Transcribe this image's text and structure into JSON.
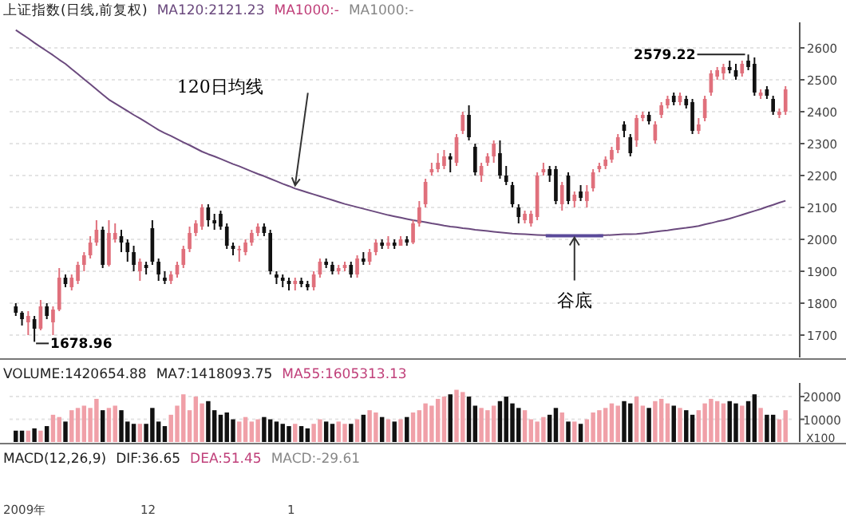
{
  "chart_data": [
    {
      "type": "candlestick",
      "title": "上证指数(日线,前复权)",
      "tick_labels": "y",
      "categories": [
        null,
        null,
        null,
        null,
        null,
        null,
        null,
        null,
        null,
        null,
        null,
        null,
        null,
        null,
        null,
        null,
        null,
        null,
        null,
        null,
        null,
        null,
        null,
        null,
        null,
        null,
        null,
        null,
        null,
        null,
        null,
        null,
        null,
        null,
        null,
        null,
        null,
        null,
        null,
        null,
        null,
        null,
        null,
        null,
        null,
        null,
        null,
        null,
        null,
        null,
        null,
        null,
        null,
        null,
        null,
        null,
        null,
        null,
        null,
        null,
        null,
        null,
        null,
        null,
        null,
        null,
        null,
        null,
        null,
        null,
        null,
        null,
        null,
        null,
        null,
        null,
        null,
        null,
        null,
        null,
        null,
        null,
        null,
        null,
        null,
        null,
        null,
        null,
        null,
        null,
        null,
        null,
        null,
        null,
        null,
        null,
        null,
        null,
        null,
        null,
        null,
        null,
        null,
        null,
        null,
        null,
        null,
        null,
        null,
        null,
        null,
        null,
        null,
        null,
        null,
        null,
        null,
        null,
        null,
        null,
        null,
        null,
        null,
        null,
        null
      ],
      "ylim": [
        1630,
        2680
      ],
      "yticks": [
        1700,
        1800,
        1900,
        2000,
        2100,
        2200,
        2300,
        2400,
        2500,
        2600
      ],
      "grid": "y",
      "ohlc": [
        [
          1790,
          1800,
          1760,
          1770
        ],
        [
          1770,
          1775,
          1730,
          1750
        ],
        [
          1740,
          1775,
          1700,
          1760
        ],
        [
          1750,
          1760,
          1678.96,
          1720
        ],
        [
          1720,
          1810,
          1715,
          1790
        ],
        [
          1790,
          1800,
          1750,
          1760
        ],
        [
          1740,
          1790,
          1700,
          1780
        ],
        [
          1780,
          1910,
          1775,
          1880
        ],
        [
          1880,
          1890,
          1850,
          1860
        ],
        [
          1850,
          1890,
          1840,
          1880
        ],
        [
          1870,
          1930,
          1860,
          1920
        ],
        [
          1920,
          1960,
          1900,
          1950
        ],
        [
          1950,
          2010,
          1940,
          1990
        ],
        [
          1990,
          2060,
          1980,
          2030
        ],
        [
          2030,
          2040,
          1910,
          1920
        ],
        [
          1920,
          2060,
          1915,
          2020
        ],
        [
          2000,
          2050,
          1990,
          2020
        ],
        [
          2010,
          2030,
          1960,
          1990
        ],
        [
          1990,
          2000,
          1930,
          1960
        ],
        [
          1960,
          1980,
          1900,
          1920
        ],
        [
          1900,
          1940,
          1870,
          1930
        ],
        [
          1920,
          1930,
          1890,
          1910
        ],
        [
          2035,
          2060,
          1920,
          1930
        ],
        [
          1930,
          1940,
          1870,
          1890
        ],
        [
          1880,
          1900,
          1860,
          1870
        ],
        [
          1870,
          1900,
          1860,
          1890
        ],
        [
          1890,
          1930,
          1880,
          1920
        ],
        [
          1920,
          1980,
          1910,
          1970
        ],
        [
          1970,
          2040,
          1960,
          2020
        ],
        [
          2020,
          2060,
          2010,
          2050
        ],
        [
          2040,
          2110,
          2030,
          2100
        ],
        [
          2100,
          2110,
          2040,
          2060
        ],
        [
          2060,
          2080,
          2030,
          2050
        ],
        [
          2080,
          2090,
          2030,
          2040
        ],
        [
          2040,
          2050,
          1970,
          1980
        ],
        [
          1980,
          1990,
          1950,
          1970
        ],
        [
          1970,
          1980,
          1930,
          1970
        ],
        [
          1960,
          2000,
          1950,
          1990
        ],
        [
          1990,
          2030,
          1980,
          2020
        ],
        [
          2020,
          2050,
          2010,
          2040
        ],
        [
          2040,
          2050,
          2010,
          2020
        ],
        [
          2020,
          2030,
          1890,
          1900
        ],
        [
          1890,
          1900,
          1860,
          1880
        ],
        [
          1880,
          1890,
          1850,
          1870
        ],
        [
          1870,
          1880,
          1840,
          1860
        ],
        [
          1860,
          1880,
          1840,
          1870
        ],
        [
          1870,
          1880,
          1850,
          1860
        ],
        [
          1860,
          1870,
          1840,
          1850
        ],
        [
          1850,
          1900,
          1840,
          1890
        ],
        [
          1890,
          1940,
          1880,
          1930
        ],
        [
          1930,
          1940,
          1910,
          1920
        ],
        [
          1920,
          1930,
          1890,
          1900
        ],
        [
          1900,
          1920,
          1890,
          1910
        ],
        [
          1910,
          1930,
          1900,
          1920
        ],
        [
          1920,
          1930,
          1880,
          1890
        ],
        [
          1890,
          1950,
          1880,
          1940
        ],
        [
          1940,
          1960,
          1920,
          1930
        ],
        [
          1930,
          1970,
          1920,
          1960
        ],
        [
          1960,
          2000,
          1950,
          1990
        ],
        [
          1990,
          2000,
          1970,
          1980
        ],
        [
          1980,
          2010,
          1970,
          1990
        ],
        [
          1990,
          2000,
          1970,
          1980
        ],
        [
          1980,
          2010,
          1980,
          2000
        ],
        [
          2000,
          2010,
          1980,
          1990
        ],
        [
          1990,
          2060,
          1985,
          2050
        ],
        [
          2050,
          2120,
          2040,
          2100
        ],
        [
          2110,
          2190,
          2100,
          2180
        ],
        [
          2210,
          2240,
          2200,
          2220
        ],
        [
          2220,
          2270,
          2210,
          2240
        ],
        [
          2230,
          2280,
          2220,
          2260
        ],
        [
          2260,
          2270,
          2210,
          2250
        ],
        [
          2240,
          2330,
          2230,
          2320
        ],
        [
          2340,
          2400,
          2330,
          2390
        ],
        [
          2390,
          2420,
          2310,
          2320
        ],
        [
          2290,
          2300,
          2200,
          2210
        ],
        [
          2200,
          2240,
          2180,
          2230
        ],
        [
          2240,
          2270,
          2230,
          2260
        ],
        [
          2260,
          2310,
          2240,
          2300
        ],
        [
          2270,
          2310,
          2190,
          2200
        ],
        [
          2200,
          2230,
          2170,
          2180
        ],
        [
          2170,
          2180,
          2100,
          2110
        ],
        [
          2100,
          2110,
          2050,
          2070
        ],
        [
          2060,
          2090,
          2050,
          2080
        ],
        [
          2050,
          2090,
          2040,
          2080
        ],
        [
          2070,
          2210,
          2060,
          2200
        ],
        [
          2210,
          2240,
          2200,
          2220
        ],
        [
          2220,
          2230,
          2180,
          2200
        ],
        [
          2220,
          2230,
          2110,
          2120
        ],
        [
          2110,
          2180,
          2090,
          2170
        ],
        [
          2200,
          2210,
          2110,
          2120
        ],
        [
          2120,
          2150,
          2100,
          2140
        ],
        [
          2150,
          2170,
          2120,
          2130
        ],
        [
          2120,
          2170,
          2100,
          2150
        ],
        [
          2160,
          2220,
          2150,
          2210
        ],
        [
          2220,
          2240,
          2210,
          2230
        ],
        [
          2230,
          2260,
          2220,
          2250
        ],
        [
          2250,
          2290,
          2240,
          2280
        ],
        [
          2280,
          2330,
          2270,
          2320
        ],
        [
          2360,
          2370,
          2320,
          2340
        ],
        [
          2320,
          2330,
          2260,
          2270
        ],
        [
          2310,
          2390,
          2290,
          2380
        ],
        [
          2380,
          2400,
          2370,
          2390
        ],
        [
          2390,
          2400,
          2360,
          2370
        ],
        [
          2310,
          2370,
          2300,
          2360
        ],
        [
          2390,
          2430,
          2380,
          2420
        ],
        [
          2420,
          2450,
          2410,
          2440
        ],
        [
          2450,
          2460,
          2420,
          2430
        ],
        [
          2430,
          2460,
          2420,
          2450
        ],
        [
          2440,
          2450,
          2410,
          2420
        ],
        [
          2430,
          2440,
          2330,
          2340
        ],
        [
          2340,
          2380,
          2330,
          2360
        ],
        [
          2380,
          2450,
          2370,
          2440
        ],
        [
          2460,
          2530,
          2450,
          2520
        ],
        [
          2510,
          2540,
          2500,
          2530
        ],
        [
          2520,
          2550,
          2500,
          2540
        ],
        [
          2540,
          2560,
          2520,
          2530
        ],
        [
          2530,
          2550,
          2500,
          2510
        ],
        [
          2520,
          2560,
          2510,
          2550
        ],
        [
          2560,
          2579.22,
          2530,
          2540
        ],
        [
          2550,
          2570,
          2450,
          2460
        ],
        [
          2450,
          2470,
          2440,
          2460
        ],
        [
          2470,
          2480,
          2440,
          2450
        ],
        [
          2440,
          2450,
          2390,
          2400
        ],
        [
          2390,
          2410,
          2380,
          2400
        ],
        [
          2400,
          2480,
          2390,
          2470
        ]
      ],
      "colors": [
        "#111111",
        "#111111",
        "#e0707c",
        "#111111",
        "#e0707c",
        "#111111",
        "#e0707c",
        "#e0707c",
        "#111111",
        "#e0707c",
        "#e0707c",
        "#e0707c",
        "#e0707c",
        "#e0707c",
        "#111111",
        "#e0707c",
        "#e0707c",
        "#111111",
        "#111111",
        "#111111",
        "#e0707c",
        "#111111",
        "#111111",
        "#111111",
        "#111111",
        "#e0707c",
        "#e0707c",
        "#e0707c",
        "#e0707c",
        "#e0707c",
        "#e0707c",
        "#111111",
        "#111111",
        "#111111",
        "#111111",
        "#111111",
        "#e0707c",
        "#e0707c",
        "#e0707c",
        "#e0707c",
        "#111111",
        "#111111",
        "#111111",
        "#111111",
        "#111111",
        "#e0707c",
        "#111111",
        "#111111",
        "#e0707c",
        "#e0707c",
        "#111111",
        "#111111",
        "#e0707c",
        "#e0707c",
        "#111111",
        "#e0707c",
        "#111111",
        "#e0707c",
        "#e0707c",
        "#111111",
        "#e0707c",
        "#111111",
        "#e0707c",
        "#111111",
        "#e0707c",
        "#e0707c",
        "#e0707c",
        "#e0707c",
        "#e0707c",
        "#e0707c",
        "#111111",
        "#e0707c",
        "#e0707c",
        "#111111",
        "#111111",
        "#e0707c",
        "#e0707c",
        "#e0707c",
        "#111111",
        "#111111",
        "#111111",
        "#111111",
        "#e0707c",
        "#e0707c",
        "#e0707c",
        "#e0707c",
        "#111111",
        "#111111",
        "#e0707c",
        "#111111",
        "#e0707c",
        "#111111",
        "#e0707c",
        "#e0707c",
        "#e0707c",
        "#e0707c",
        "#e0707c",
        "#e0707c",
        "#111111",
        "#111111",
        "#e0707c",
        "#e0707c",
        "#111111",
        "#e0707c",
        "#e0707c",
        "#e0707c",
        "#111111",
        "#e0707c",
        "#111111",
        "#111111",
        "#e0707c",
        "#e0707c",
        "#e0707c",
        "#e0707c",
        "#e0707c",
        "#111111",
        "#111111",
        "#e0707c",
        "#111111",
        "#111111",
        "#e0707c",
        "#111111",
        "#111111",
        "#e0707c",
        "#e0707c"
      ],
      "series": [
        {
          "type": "line",
          "name": "MA120:2121.23",
          "color": "#6b4a7e",
          "values": [
            2656,
            2643,
            2630,
            2616,
            2603,
            2590,
            2577,
            2563,
            2550,
            2534,
            2518,
            2502,
            2486,
            2470,
            2454,
            2438,
            2426,
            2414,
            2402,
            2390,
            2379,
            2367,
            2355,
            2343,
            2333,
            2324,
            2314,
            2304,
            2295,
            2285,
            2275,
            2267,
            2260,
            2252,
            2244,
            2236,
            2229,
            2221,
            2213,
            2205,
            2198,
            2190,
            2182,
            2174,
            2167,
            2159,
            2153,
            2147,
            2141,
            2135,
            2129,
            2123,
            2117,
            2111,
            2106,
            2101,
            2096,
            2091,
            2086,
            2081,
            2076,
            2072,
            2068,
            2064,
            2060,
            2057,
            2054,
            2050,
            2047,
            2043,
            2040,
            2038,
            2035,
            2033,
            2030,
            2028,
            2026,
            2024,
            2022,
            2020,
            2018,
            2017,
            2016,
            2015,
            2014,
            2013,
            2013,
            2012,
            2012,
            2011,
            2011,
            2011,
            2012,
            2012,
            2013,
            2013,
            2014,
            2015,
            2016,
            2016,
            2017,
            2019,
            2021,
            2024,
            2026,
            2028,
            2031,
            2034,
            2036,
            2039,
            2042,
            2047,
            2051,
            2056,
            2060,
            2065,
            2071,
            2077,
            2083,
            2089,
            2095,
            2102,
            2108,
            2115,
            2121
          ]
        }
      ],
      "annotations": [
        "MA1000:-",
        "MA1000:-",
        "120日均线",
        "谷底",
        "1678.96",
        "2579.22"
      ]
    },
    {
      "type": "bar",
      "title": "VOLUME:1420654.88",
      "subtitle": "MA7:1418093.75",
      "annotations": [
        "MA55:1605313.13",
        "X100"
      ],
      "tick_labels": "y",
      "categories": [
        null,
        null,
        null,
        null,
        null,
        null,
        null,
        null,
        null,
        null,
        null,
        null,
        null,
        null,
        null,
        null,
        null,
        null,
        null,
        null,
        null,
        null,
        null,
        null,
        null,
        null,
        null,
        null,
        null,
        null,
        null,
        null,
        null,
        null,
        null,
        null,
        null,
        null,
        null,
        null,
        null,
        null,
        null,
        null,
        null,
        null,
        null,
        null,
        null,
        null,
        null,
        null,
        null,
        null,
        null,
        null,
        null,
        null,
        null,
        null,
        null,
        null,
        null,
        null,
        null,
        null,
        null,
        null,
        null,
        null,
        null,
        null,
        null,
        null,
        null,
        null,
        null,
        null,
        null,
        null,
        null,
        null,
        null,
        null,
        null,
        null,
        null,
        null,
        null,
        null,
        null,
        null,
        null,
        null,
        null,
        null,
        null,
        null,
        null,
        null,
        null,
        null,
        null,
        null,
        null,
        null,
        null,
        null,
        null,
        null,
        null,
        null,
        null,
        null,
        null,
        null,
        null,
        null,
        null,
        null,
        null,
        null,
        null,
        null,
        null
      ],
      "ylim": [
        0,
        26000
      ],
      "yticks": [
        10000,
        20000
      ],
      "grid": "y",
      "values": [
        5000,
        5000,
        5000,
        6000,
        5000,
        7000,
        12000,
        11000,
        9000,
        14000,
        15000,
        16000,
        15000,
        19000,
        14000,
        15000,
        16000,
        14000,
        9000,
        8000,
        8000,
        8000,
        15000,
        9000,
        7000,
        12000,
        16000,
        21000,
        14000,
        20000,
        17000,
        18000,
        14000,
        12000,
        13000,
        10000,
        9000,
        11000,
        9000,
        10000,
        11000,
        10000,
        9000,
        8000,
        7000,
        8000,
        7000,
        6000,
        8000,
        10000,
        9000,
        8000,
        9000,
        8000,
        8000,
        10000,
        12000,
        14000,
        13000,
        11000,
        10000,
        9000,
        10000,
        11000,
        13000,
        14000,
        17000,
        16000,
        19000,
        20000,
        21000,
        23000,
        22000,
        20000,
        16000,
        15000,
        14000,
        16000,
        18000,
        20000,
        17000,
        15000,
        14000,
        10000,
        9000,
        11000,
        12000,
        15000,
        13000,
        9000,
        9000,
        8000,
        10000,
        13000,
        14000,
        15000,
        17000,
        16000,
        18000,
        17000,
        20000,
        16000,
        15000,
        18000,
        19000,
        17000,
        16000,
        15000,
        14000,
        12000,
        14000,
        17000,
        19000,
        18000,
        17000,
        18000,
        17000,
        16000,
        18000,
        21000,
        15000,
        12000,
        12000,
        10000,
        14000
      ],
      "colors": [
        "#111111",
        "#111111",
        "#f0a0a8",
        "#111111",
        "#f0a0a8",
        "#111111",
        "#f0a0a8",
        "#f0a0a8",
        "#111111",
        "#f0a0a8",
        "#f0a0a8",
        "#f0a0a8",
        "#f0a0a8",
        "#f0a0a8",
        "#111111",
        "#f0a0a8",
        "#f0a0a8",
        "#111111",
        "#111111",
        "#111111",
        "#f0a0a8",
        "#111111",
        "#111111",
        "#111111",
        "#111111",
        "#f0a0a8",
        "#f0a0a8",
        "#f0a0a8",
        "#f0a0a8",
        "#f0a0a8",
        "#f0a0a8",
        "#111111",
        "#111111",
        "#111111",
        "#111111",
        "#111111",
        "#f0a0a8",
        "#f0a0a8",
        "#f0a0a8",
        "#f0a0a8",
        "#111111",
        "#111111",
        "#111111",
        "#111111",
        "#111111",
        "#f0a0a8",
        "#111111",
        "#111111",
        "#f0a0a8",
        "#f0a0a8",
        "#111111",
        "#111111",
        "#f0a0a8",
        "#f0a0a8",
        "#111111",
        "#f0a0a8",
        "#111111",
        "#f0a0a8",
        "#f0a0a8",
        "#111111",
        "#f0a0a8",
        "#111111",
        "#f0a0a8",
        "#111111",
        "#f0a0a8",
        "#f0a0a8",
        "#f0a0a8",
        "#f0a0a8",
        "#f0a0a8",
        "#f0a0a8",
        "#111111",
        "#f0a0a8",
        "#f0a0a8",
        "#111111",
        "#111111",
        "#f0a0a8",
        "#f0a0a8",
        "#f0a0a8",
        "#111111",
        "#111111",
        "#111111",
        "#111111",
        "#f0a0a8",
        "#f0a0a8",
        "#f0a0a8",
        "#f0a0a8",
        "#111111",
        "#111111",
        "#f0a0a8",
        "#111111",
        "#f0a0a8",
        "#111111",
        "#f0a0a8",
        "#f0a0a8",
        "#f0a0a8",
        "#f0a0a8",
        "#f0a0a8",
        "#f0a0a8",
        "#111111",
        "#111111",
        "#f0a0a8",
        "#f0a0a8",
        "#111111",
        "#f0a0a8",
        "#f0a0a8",
        "#f0a0a8",
        "#111111",
        "#f0a0a8",
        "#111111",
        "#111111",
        "#f0a0a8",
        "#f0a0a8",
        "#f0a0a8",
        "#f0a0a8",
        "#f0a0a8",
        "#111111",
        "#111111",
        "#f0a0a8",
        "#111111",
        "#111111",
        "#f0a0a8",
        "#111111",
        "#111111",
        "#f0a0a8",
        "#f0a0a8"
      ]
    },
    {
      "type": "other",
      "title": "MACD(12,26,9)",
      "subtitle": "DIF:36.65",
      "annotations": [
        "DEA:51.45",
        "MACD:-29.61",
        "2009年",
        "12",
        "1"
      ]
    }
  ]
}
